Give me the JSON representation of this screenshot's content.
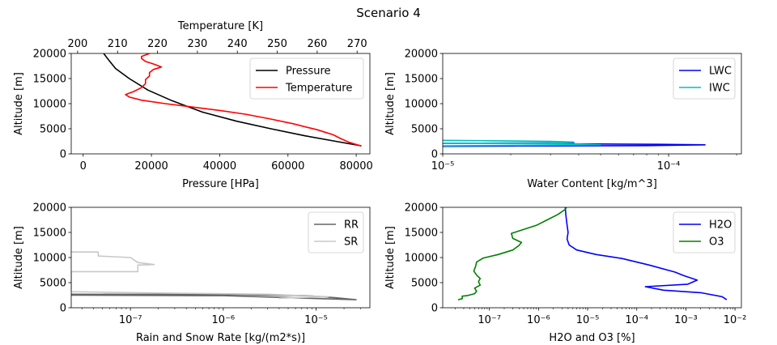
{
  "figure": {
    "title": "Scenario 4"
  },
  "chart_data": [
    {
      "id": "atmosphere",
      "type": "line",
      "xlabel": "Pressure [HPa]",
      "ylabel": "Altitude [m]",
      "xlim": [
        -3500,
        84000
      ],
      "ylim": [
        0,
        20000
      ],
      "xticks": [
        0,
        20000,
        40000,
        60000,
        80000
      ],
      "xtick_labels": [
        "0",
        "20000",
        "40000",
        "60000",
        "80000"
      ],
      "yticks": [
        0,
        5000,
        10000,
        15000,
        20000
      ],
      "ytick_labels": [
        "0",
        "5000",
        "10000",
        "15000",
        "20000"
      ],
      "top_axis": {
        "xlabel": "Temperature [K]",
        "xlim": [
          198.4,
          273.2
        ],
        "xticks": [
          200,
          210,
          220,
          230,
          240,
          250,
          260,
          270
        ],
        "xtick_labels": [
          "200",
          "210",
          "220",
          "230",
          "240",
          "250",
          "260",
          "270"
        ]
      },
      "legend": {
        "position": "top-right",
        "entries": [
          "Pressure",
          "Temperature"
        ]
      },
      "series": [
        {
          "name": "Pressure",
          "color": "#000000",
          "axis": "bottom",
          "points": [
            [
              81500,
              1600
            ],
            [
              74000,
              2500
            ],
            [
              65000,
              3600
            ],
            [
              55000,
              5000
            ],
            [
              45000,
              6500
            ],
            [
              35000,
              8300
            ],
            [
              26000,
              10600
            ],
            [
              19000,
              12700
            ],
            [
              13500,
              15000
            ],
            [
              9500,
              17000
            ],
            [
              7700,
              18500
            ],
            [
              6000,
              20000
            ]
          ]
        },
        {
          "name": "Temperature",
          "color": "#ff0000",
          "axis": "top",
          "points": [
            [
              271,
              1600
            ],
            [
              270,
              1800
            ],
            [
              268,
              2300
            ],
            [
              266,
              3000
            ],
            [
              264,
              3800
            ],
            [
              262,
              4300
            ],
            [
              260,
              4800
            ],
            [
              258,
              5200
            ],
            [
              254,
              6000
            ],
            [
              248,
              7000
            ],
            [
              242,
              7900
            ],
            [
              236,
              8600
            ],
            [
              228,
              9400
            ],
            [
              222,
              10000
            ],
            [
              216,
              10700
            ],
            [
              213,
              11300
            ],
            [
              212,
              11800
            ],
            [
              214,
              12400
            ],
            [
              216,
              13200
            ],
            [
              217,
              14000
            ],
            [
              217,
              14800
            ],
            [
              218,
              15500
            ],
            [
              218,
              16200
            ],
            [
              219,
              16800
            ],
            [
              221,
              17300
            ],
            [
              219,
              17900
            ],
            [
              217,
              18400
            ],
            [
              216,
              19000
            ],
            [
              216,
              19400
            ],
            [
              217,
              19700
            ],
            [
              218,
              20000
            ]
          ]
        }
      ]
    },
    {
      "id": "water-content",
      "type": "line",
      "xscale": "log",
      "xlabel": "Water Content [kg/m^3]",
      "ylabel": "Altitude [m]",
      "xlim": [
        1e-05,
        0.00021
      ],
      "ylim": [
        0,
        20000
      ],
      "xticks": [
        1e-05,
        0.0001
      ],
      "xtick_labels": [
        "10⁻⁵",
        "10⁻⁴"
      ],
      "yticks": [
        0,
        5000,
        10000,
        15000,
        20000
      ],
      "ytick_labels": [
        "0",
        "5000",
        "10000",
        "15000",
        "20000"
      ],
      "legend": {
        "position": "top-right",
        "entries": [
          "LWC",
          "IWC"
        ]
      },
      "series": [
        {
          "name": "LWC",
          "color": "#0000ff",
          "points": [
            [
              1e-05,
              2100
            ],
            [
              3.8e-05,
              2250
            ],
            [
              3.8e-05,
              2000
            ],
            [
              9e-05,
              1900
            ],
            [
              0.000145,
              1800
            ],
            [
              8e-05,
              1650
            ],
            [
              3.8e-05,
              1600
            ],
            [
              1e-05,
              1500
            ]
          ]
        },
        {
          "name": "IWC",
          "color": "#00bfbf",
          "points": [
            [
              1e-05,
              2700
            ],
            [
              3e-05,
              2500
            ],
            [
              3.8e-05,
              2350
            ],
            [
              3e-05,
              2200
            ],
            [
              1e-05,
              2100
            ],
            [
              3.8e-05,
              2000
            ],
            [
              5e-05,
              1800
            ],
            [
              1e-05,
              1600
            ]
          ]
        }
      ]
    },
    {
      "id": "precipitation",
      "type": "line",
      "xscale": "log",
      "xlabel": "Rain and Snow Rate [kg/(m2*s)]",
      "ylabel": "Altitude [m]",
      "xlim": [
        2.3e-08,
        3.8e-05
      ],
      "ylim": [
        0,
        20000
      ],
      "xticks": [
        1e-07,
        1e-06,
        1e-05
      ],
      "xtick_labels": [
        "10⁻⁷",
        "10⁻⁶",
        "10⁻⁵"
      ],
      "yticks": [
        0,
        5000,
        10000,
        15000,
        20000
      ],
      "ytick_labels": [
        "0",
        "5000",
        "10000",
        "15000",
        "20000"
      ],
      "legend": {
        "position": "top-right",
        "entries": [
          "RR",
          "SR"
        ]
      },
      "series": [
        {
          "name": "RR",
          "color": "#666666",
          "points": [
            [
              2.3e-08,
              2700
            ],
            [
              1e-06,
              2650
            ],
            [
              8e-06,
              2400
            ],
            [
              1.6e-05,
              2000
            ],
            [
              2.7e-05,
              1600
            ],
            [
              1e-06,
              2400
            ],
            [
              2.3e-08,
              2500
            ]
          ]
        },
        {
          "name": "SR",
          "color": "#c8c8c8",
          "points": [
            [
              2.3e-08,
              11100
            ],
            [
              4.5e-08,
              11100
            ],
            [
              4.5e-08,
              10300
            ],
            [
              1e-07,
              10000
            ],
            [
              1.2e-07,
              9000
            ],
            [
              1.8e-07,
              8600
            ],
            [
              1.2e-07,
              8500
            ],
            [
              1.2e-07,
              7200
            ],
            [
              2.3e-08,
              7200
            ],
            [
              2.3e-08,
              3200
            ],
            [
              1.2e-07,
              3000
            ],
            [
              3e-07,
              2900
            ],
            [
              8e-07,
              2800
            ],
            [
              3e-06,
              2700
            ],
            [
              1.35e-05,
              2200
            ],
            [
              4e-06,
              1900
            ]
          ]
        }
      ]
    },
    {
      "id": "gases",
      "type": "line",
      "xscale": "log",
      "xlabel": "H2O and O3 [%]",
      "ylabel": "Altitude [m]",
      "xlim": [
        1.12e-08,
        0.0135
      ],
      "ylim": [
        0,
        20000
      ],
      "xticks": [
        1e-07,
        1e-06,
        1e-05,
        0.0001,
        0.001,
        0.01
      ],
      "xtick_labels": [
        "10⁻⁷",
        "10⁻⁶",
        "10⁻⁵",
        "10⁻⁴",
        "10⁻³",
        "10⁻²"
      ],
      "yticks": [
        0,
        5000,
        10000,
        15000,
        20000
      ],
      "ytick_labels": [
        "0",
        "5000",
        "10000",
        "15000",
        "20000"
      ],
      "legend": {
        "position": "top-right",
        "entries": [
          "H2O",
          "O3"
        ]
      },
      "series": [
        {
          "name": "H2O",
          "color": "#0000ff",
          "points": [
            [
              0.0068,
              1600
            ],
            [
              0.0055,
              2200
            ],
            [
              0.002,
              3000
            ],
            [
              0.00035,
              3500
            ],
            [
              0.00015,
              4200
            ],
            [
              0.0011,
              4700
            ],
            [
              0.0017,
              5500
            ],
            [
              0.0009,
              6400
            ],
            [
              0.0006,
              7100
            ],
            [
              0.00018,
              8500
            ],
            [
              5e-05,
              9800
            ],
            [
              1.5e-05,
              10600
            ],
            [
              6e-06,
              11500
            ],
            [
              4.2e-06,
              12500
            ],
            [
              3.8e-06,
              13700
            ],
            [
              4e-06,
              15000
            ],
            [
              3.8e-06,
              16500
            ],
            [
              3.6e-06,
              18500
            ],
            [
              3.5e-06,
              20000
            ]
          ]
        },
        {
          "name": "O3",
          "color": "#008000",
          "points": [
            [
              2.3e-08,
              1600
            ],
            [
              2.8e-08,
              1800
            ],
            [
              2.8e-08,
              2300
            ],
            [
              3.5e-08,
              2400
            ],
            [
              5e-08,
              2800
            ],
            [
              5.5e-08,
              3300
            ],
            [
              5e-08,
              3900
            ],
            [
              6.5e-08,
              4500
            ],
            [
              6e-08,
              5200
            ],
            [
              6.5e-08,
              5800
            ],
            [
              5.5e-08,
              6500
            ],
            [
              4.8e-08,
              7300
            ],
            [
              5.2e-08,
              8200
            ],
            [
              5.5e-08,
              9100
            ],
            [
              7.5e-08,
              9900
            ],
            [
              1.5e-07,
              10600
            ],
            [
              3e-07,
              11500
            ],
            [
              4e-07,
              12400
            ],
            [
              4.5e-07,
              13000
            ],
            [
              3e-07,
              13800
            ],
            [
              2.8e-07,
              14800
            ],
            [
              5e-07,
              15600
            ],
            [
              9e-07,
              16400
            ],
            [
              1.5e-06,
              17500
            ],
            [
              2.5e-06,
              18600
            ],
            [
              3.5e-06,
              19600
            ],
            [
              3.7e-06,
              20000
            ]
          ]
        }
      ]
    }
  ]
}
